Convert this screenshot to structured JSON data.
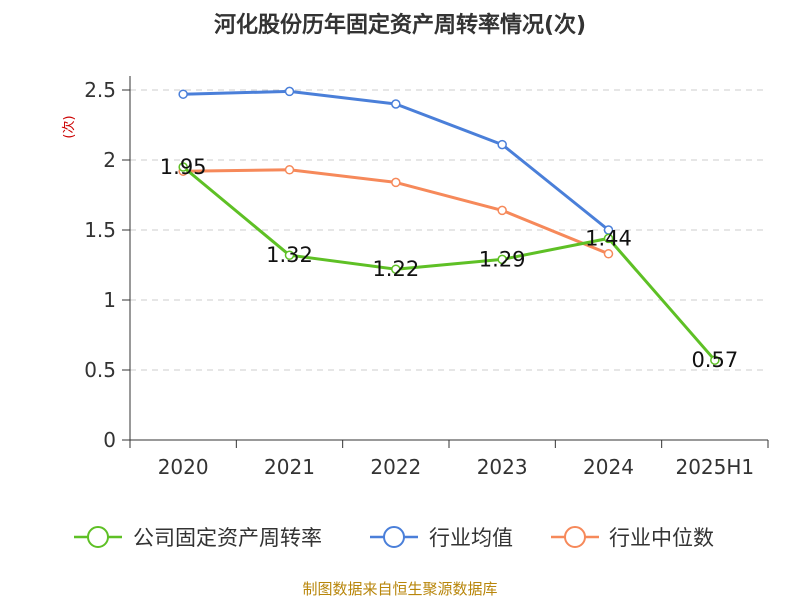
{
  "chart_data": {
    "type": "line",
    "title": "河化股份历年固定资产周转率情况(次)",
    "ylabel": "(次)",
    "xlabel": "",
    "categories": [
      "2020",
      "2021",
      "2022",
      "2023",
      "2024",
      "2025H1"
    ],
    "y_ticks": [
      "0",
      "0.5",
      "1",
      "1.5",
      "2",
      "2.5"
    ],
    "ylim": [
      0,
      2.5
    ],
    "grid": true,
    "grid_style": "dashed horizontal",
    "legend_position": "bottom",
    "series": [
      {
        "name": "公司固定资产周转率",
        "color": "#5ec025",
        "values": [
          1.95,
          1.32,
          1.22,
          1.29,
          1.44,
          0.57
        ],
        "labels": [
          "1.95",
          "1.32",
          "1.22",
          "1.29",
          "1.44",
          "0.57"
        ]
      },
      {
        "name": "行业均值",
        "color": "#4a7fd9",
        "values": [
          2.47,
          2.49,
          2.4,
          2.11,
          1.5,
          null
        ],
        "labels": []
      },
      {
        "name": "行业中位数",
        "color": "#f6895a",
        "values": [
          1.92,
          1.93,
          1.84,
          1.64,
          1.33,
          null
        ],
        "labels": []
      }
    ],
    "source": "制图数据来自恒生聚源数据库"
  }
}
